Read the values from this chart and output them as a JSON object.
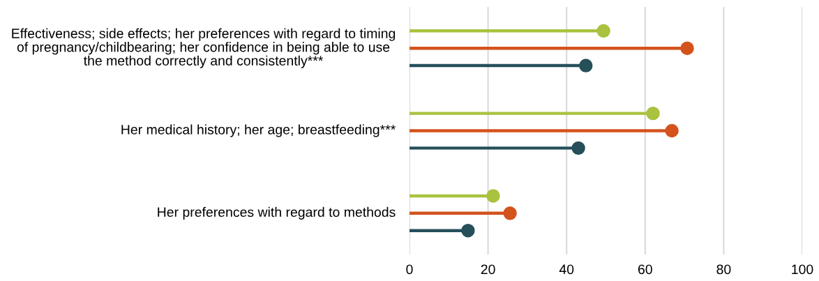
{
  "chart_data": {
    "type": "lollipop",
    "orientation": "horizontal",
    "categories": [
      "Effectiveness; side effects; her preferences with regard to timing of pregnancy/childbearing; her confidence in being able to use the method correctly and consistently***",
      "Her medical history; her age; breastfeeding***",
      "Her preferences with regard to methods"
    ],
    "series": [
      {
        "color": "#a9c23f",
        "values": [
          49.4,
          62.0,
          21.3
        ]
      },
      {
        "color": "#d4531c",
        "values": [
          70.7,
          66.8,
          25.6
        ]
      },
      {
        "color": "#264f5a",
        "values": [
          44.9,
          43.0,
          14.9
        ]
      }
    ],
    "xlim": [
      0,
      100
    ],
    "xticks": [
      0,
      20,
      40,
      60,
      80,
      100
    ],
    "grid": "x",
    "marker": "circle"
  }
}
